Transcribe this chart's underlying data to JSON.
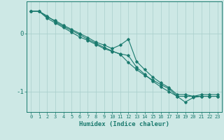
{
  "xlabel": "Humidex (Indice chaleur)",
  "bg_color": "#cde8e5",
  "line_color": "#1a7a6e",
  "grid_color": "#aacfcc",
  "x_ticks": [
    0,
    1,
    2,
    3,
    4,
    5,
    6,
    7,
    8,
    9,
    10,
    11,
    12,
    13,
    14,
    15,
    16,
    17,
    18,
    19,
    20,
    21,
    22,
    23
  ],
  "y_ticks": [
    0,
    -1
  ],
  "xlim": [
    -0.5,
    23.5
  ],
  "ylim": [
    -1.35,
    0.55
  ],
  "series": [
    [
      0.38,
      0.38,
      0.3,
      0.2,
      0.12,
      0.05,
      -0.02,
      -0.1,
      -0.17,
      -0.24,
      -0.3,
      -0.36,
      -0.5,
      -0.62,
      -0.72,
      -0.8,
      -0.88,
      -0.95,
      -1.08,
      -1.18,
      -1.1,
      -1.08,
      -1.08,
      -1.08
    ],
    [
      0.38,
      0.38,
      0.26,
      0.18,
      0.1,
      0.02,
      -0.06,
      -0.12,
      -0.19,
      -0.26,
      -0.31,
      -0.35,
      -0.38,
      -0.58,
      -0.7,
      -0.82,
      -0.92,
      -1.0,
      -1.08,
      -1.08,
      -1.08,
      -1.08,
      -1.08,
      -1.08
    ],
    [
      0.38,
      0.38,
      0.28,
      0.22,
      0.14,
      0.07,
      0.0,
      -0.07,
      -0.15,
      -0.2,
      -0.26,
      -0.2,
      -0.1,
      -0.48,
      -0.62,
      -0.75,
      -0.85,
      -0.93,
      -1.05,
      -1.05,
      -1.08,
      -1.05,
      -1.05,
      -1.05
    ]
  ],
  "xlabel_fontsize": 6.5,
  "ytick_fontsize": 6.5,
  "xtick_fontsize": 5.0
}
